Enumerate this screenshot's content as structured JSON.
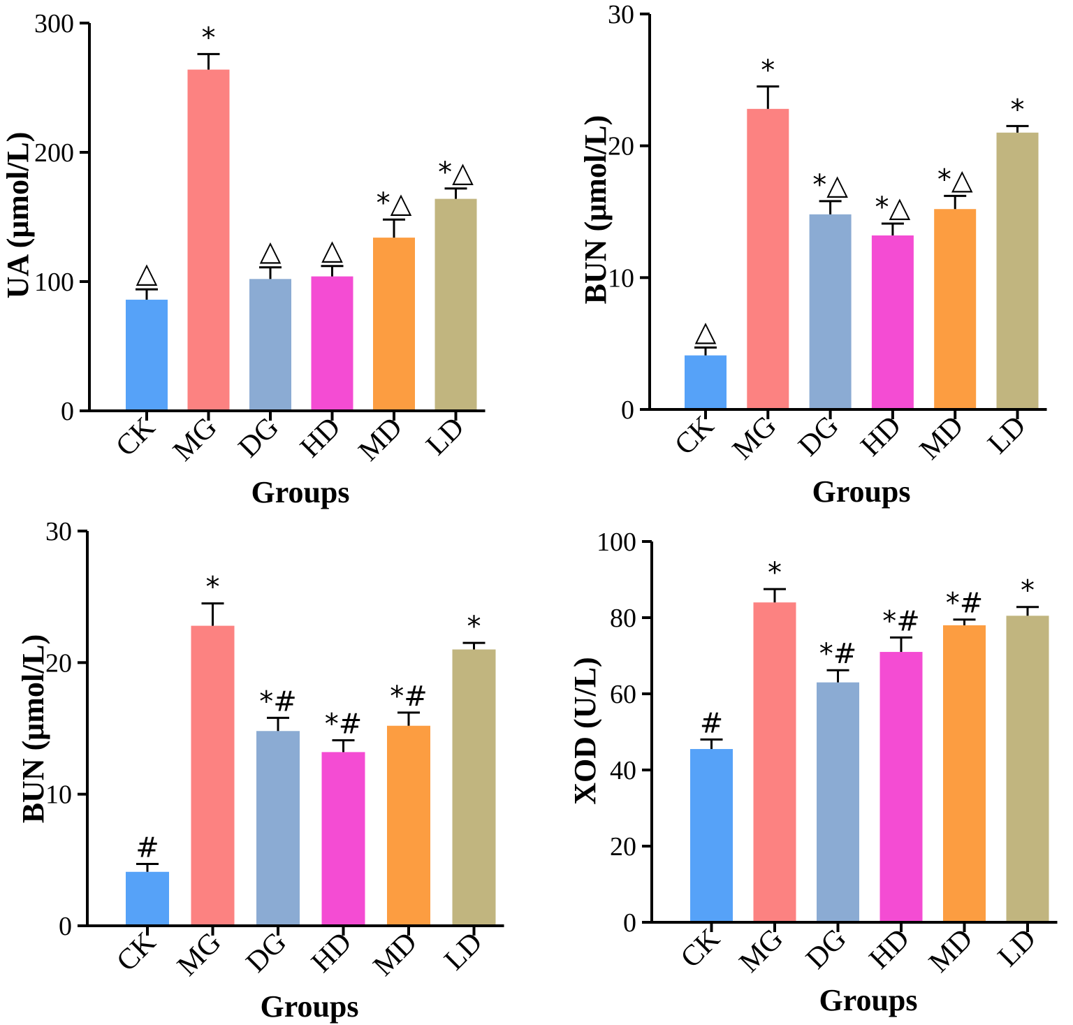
{
  "chart_data": [
    {
      "type": "bar",
      "categories": [
        "CK",
        "MG",
        "DG",
        "HD",
        "MD",
        "LD"
      ],
      "values": [
        86,
        264,
        102,
        104,
        134,
        164
      ],
      "errors": [
        8,
        12,
        9,
        8,
        14,
        8
      ],
      "annotations": [
        "△",
        "*",
        "△",
        "△",
        "*△",
        "*△"
      ],
      "xlabel": "Groups",
      "ylabel": "UA (μmol/L)",
      "ylim": [
        0,
        300
      ],
      "yticks": [
        "0",
        "100",
        "200",
        "300"
      ]
    },
    {
      "type": "bar",
      "categories": [
        "CK",
        "MG",
        "DG",
        "HD",
        "MD",
        "LD"
      ],
      "values": [
        4.1,
        22.8,
        14.8,
        13.2,
        15.2,
        21.0
      ],
      "errors": [
        0.6,
        1.7,
        1.0,
        0.9,
        1.0,
        0.5
      ],
      "annotations": [
        "△",
        "*",
        "*△",
        "*△",
        "*△",
        "*"
      ],
      "xlabel": "Groups",
      "ylabel": "BUN (μmol/L)",
      "ylim": [
        0,
        30
      ],
      "yticks": [
        "0",
        "10",
        "20",
        "30"
      ]
    },
    {
      "type": "bar",
      "categories": [
        "CK",
        "MG",
        "DG",
        "HD",
        "MD",
        "LD"
      ],
      "values": [
        4.1,
        22.8,
        14.8,
        13.2,
        15.2,
        21.0
      ],
      "errors": [
        0.6,
        1.7,
        1.0,
        0.9,
        1.0,
        0.5
      ],
      "annotations": [
        "#",
        "*",
        "*#",
        "*#",
        "*#",
        "*"
      ],
      "xlabel": "Groups",
      "ylabel": "BUN (μmol/L)",
      "ylim": [
        0,
        30
      ],
      "yticks": [
        "0",
        "10",
        "20",
        "30"
      ]
    },
    {
      "type": "bar",
      "categories": [
        "CK",
        "MG",
        "DG",
        "HD",
        "MD",
        "LD"
      ],
      "values": [
        45.5,
        84,
        63,
        71,
        78,
        80.5
      ],
      "errors": [
        2.5,
        3.5,
        3.2,
        3.8,
        1.5,
        2.3
      ],
      "annotations": [
        "#",
        "*",
        "*#",
        "*#",
        "*#",
        "*"
      ],
      "xlabel": "Groups",
      "ylabel": "XOD (U/L)",
      "ylim": [
        0,
        100
      ],
      "yticks": [
        "0",
        "20",
        "40",
        "60",
        "80",
        "100"
      ]
    }
  ],
  "colors": {
    "bars": [
      "#56a2f8",
      "#fc8281",
      "#8babd3",
      "#f44cd3",
      "#fc9d41",
      "#c1b57f"
    ],
    "axis": "#000000"
  }
}
